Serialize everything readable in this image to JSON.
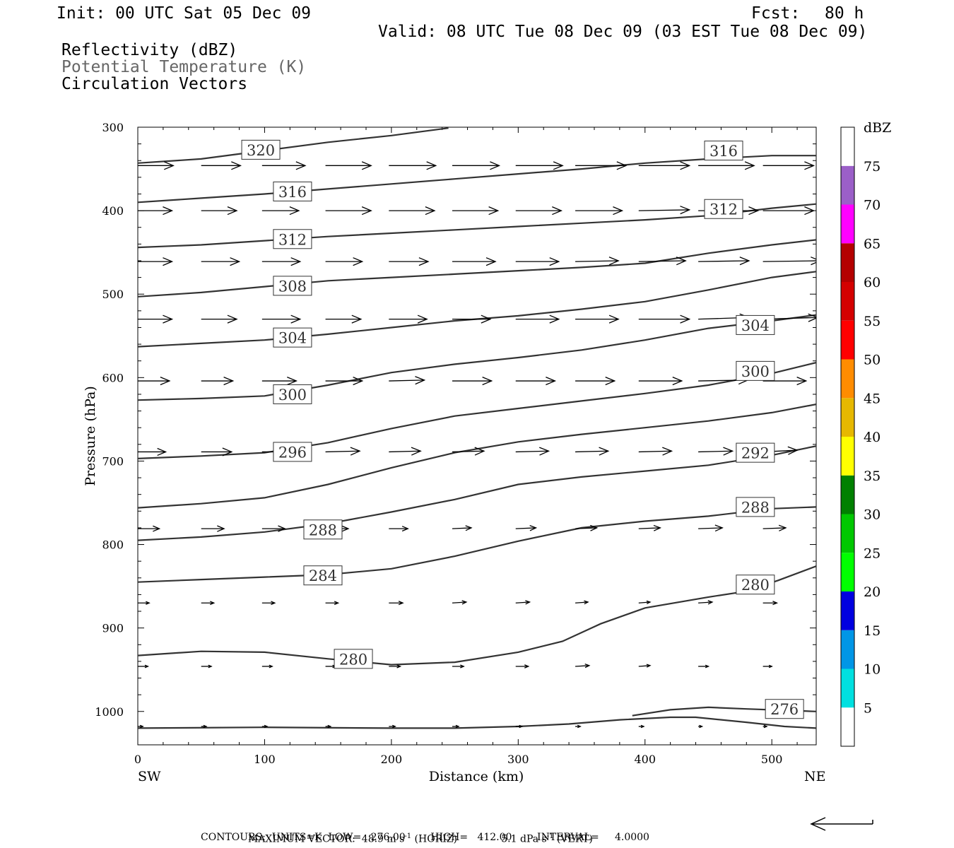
{
  "header": {
    "init": "Init: 00 UTC Sat 05 Dec 09",
    "fcst_label": "Fcst:",
    "fcst_value": "80 h",
    "valid": "Valid: 08 UTC Tue 08 Dec 09 (03 EST Tue 08 Dec 09)",
    "field1": "Reflectivity (dBZ)",
    "field2": "Potential Temperature (K)",
    "field3": "Circulation Vectors"
  },
  "footer": {
    "max_vector_label": "MAXIMUM VECTOR:",
    "max_horiz": "48.9 m s",
    "max_horiz_suffix": " (HORIZ)",
    "max_vert": "5.1 dPa s",
    "max_vert_suffix": " (VERT)",
    "sup": "-1",
    "contours": "CONTOURS:  UNITS=K  LOW=   276.00        HIGH=   412.00        INTERVAL=     4.0000"
  },
  "colorbar": {
    "title": "dBZ",
    "levels": [
      "5",
      "10",
      "15",
      "20",
      "25",
      "30",
      "35",
      "40",
      "45",
      "50",
      "55",
      "60",
      "65",
      "70",
      "75"
    ],
    "colors": [
      "#ffffff",
      "#00e0e0",
      "#0096e6",
      "#0000e0",
      "#00ff00",
      "#00c800",
      "#008000",
      "#ffff00",
      "#e6b800",
      "#ff8c00",
      "#ff0000",
      "#d40000",
      "#b40000",
      "#ff00ff",
      "#9b5fc8",
      "#ffffff"
    ]
  },
  "chart_data": {
    "type": "contour",
    "xlabel": "Distance (km)",
    "ylabel": "Pressure (hPa)",
    "xlim": [
      0,
      535
    ],
    "ylim": [
      300,
      1040
    ],
    "y_reversed": true,
    "x_ticks": [
      0,
      100,
      200,
      300,
      400,
      500
    ],
    "y_ticks": [
      300,
      400,
      500,
      600,
      700,
      800,
      900,
      1000
    ],
    "left_label": "SW",
    "right_label": "NE",
    "contour_color": "#333333",
    "contours": [
      {
        "label": "320",
        "points": [
          [
            0,
            343
          ],
          [
            50,
            338
          ],
          [
            100,
            328
          ],
          [
            150,
            318
          ],
          [
            200,
            310
          ],
          [
            245,
            301
          ]
        ],
        "labels_at": [
          [
            97,
            327
          ]
        ]
      },
      {
        "label": "316",
        "points": [
          [
            0,
            390
          ],
          [
            50,
            385
          ],
          [
            100,
            380
          ],
          [
            150,
            374
          ],
          [
            200,
            368
          ],
          [
            250,
            362
          ],
          [
            300,
            356
          ],
          [
            350,
            350
          ],
          [
            400,
            343
          ],
          [
            450,
            338
          ],
          [
            500,
            334
          ],
          [
            535,
            334
          ]
        ],
        "labels_at": [
          [
            122,
            377
          ],
          [
            462,
            328
          ]
        ]
      },
      {
        "label": "312",
        "points": [
          [
            0,
            444
          ],
          [
            50,
            441
          ],
          [
            100,
            436
          ],
          [
            150,
            431
          ],
          [
            200,
            427
          ],
          [
            250,
            423
          ],
          [
            300,
            419
          ],
          [
            350,
            415
          ],
          [
            400,
            411
          ],
          [
            450,
            406
          ],
          [
            500,
            397
          ],
          [
            535,
            392
          ]
        ],
        "labels_at": [
          [
            122,
            434
          ],
          [
            462,
            398
          ]
        ]
      },
      {
        "label": "308",
        "points": [
          [
            0,
            503
          ],
          [
            50,
            498
          ],
          [
            100,
            491
          ],
          [
            150,
            484
          ],
          [
            200,
            480
          ],
          [
            250,
            476
          ],
          [
            300,
            472
          ],
          [
            350,
            468
          ],
          [
            400,
            463
          ],
          [
            450,
            451
          ],
          [
            500,
            441
          ],
          [
            535,
            435
          ]
        ],
        "labels_at": [
          [
            122,
            490
          ]
        ]
      },
      {
        "label": "304",
        "points": [
          [
            0,
            563
          ],
          [
            50,
            559
          ],
          [
            100,
            555
          ],
          [
            150,
            548
          ],
          [
            200,
            540
          ],
          [
            250,
            532
          ],
          [
            300,
            526
          ],
          [
            350,
            518
          ],
          [
            400,
            509
          ],
          [
            450,
            495
          ],
          [
            500,
            480
          ],
          [
            535,
            473
          ]
        ],
        "labels_at": [
          [
            122,
            552
          ],
          [
            487,
            537
          ]
        ]
      },
      {
        "label": "300",
        "points": [
          [
            0,
            627
          ],
          [
            50,
            625
          ],
          [
            100,
            622
          ],
          [
            150,
            609
          ],
          [
            200,
            594
          ],
          [
            250,
            584
          ],
          [
            300,
            576
          ],
          [
            350,
            567
          ],
          [
            400,
            555
          ],
          [
            450,
            541
          ],
          [
            500,
            532
          ],
          [
            535,
            525
          ]
        ],
        "labels_at": [
          [
            122,
            620
          ],
          [
            487,
            592
          ]
        ]
      },
      {
        "label": "296",
        "points": [
          [
            0,
            697
          ],
          [
            50,
            694
          ],
          [
            100,
            690
          ],
          [
            150,
            678
          ],
          [
            200,
            661
          ],
          [
            250,
            646
          ],
          [
            300,
            637
          ],
          [
            350,
            628
          ],
          [
            400,
            619
          ],
          [
            450,
            609
          ],
          [
            500,
            595
          ],
          [
            535,
            582
          ]
        ],
        "labels_at": [
          [
            122,
            689
          ]
        ]
      },
      {
        "label": "292",
        "points": [
          [
            0,
            756
          ],
          [
            50,
            751
          ],
          [
            100,
            744
          ],
          [
            150,
            728
          ],
          [
            200,
            708
          ],
          [
            250,
            690
          ],
          [
            300,
            677
          ],
          [
            350,
            668
          ],
          [
            400,
            660
          ],
          [
            450,
            652
          ],
          [
            500,
            642
          ],
          [
            535,
            632
          ]
        ],
        "labels_at": [
          [
            487,
            690
          ]
        ]
      },
      {
        "label": "288",
        "points": [
          [
            0,
            795
          ],
          [
            50,
            791
          ],
          [
            100,
            785
          ],
          [
            150,
            775
          ],
          [
            200,
            761
          ],
          [
            250,
            746
          ],
          [
            300,
            728
          ],
          [
            350,
            719
          ],
          [
            400,
            712
          ],
          [
            450,
            705
          ],
          [
            500,
            693
          ],
          [
            535,
            682
          ]
        ],
        "labels_at": [
          [
            146,
            782
          ],
          [
            487,
            755
          ]
        ]
      },
      {
        "label": "284",
        "points": [
          [
            0,
            845
          ],
          [
            50,
            842
          ],
          [
            100,
            839
          ],
          [
            150,
            836
          ],
          [
            200,
            829
          ],
          [
            250,
            814
          ],
          [
            300,
            796
          ],
          [
            350,
            780
          ],
          [
            400,
            772
          ],
          [
            450,
            766
          ],
          [
            500,
            757
          ],
          [
            535,
            755
          ]
        ],
        "labels_at": [
          [
            146,
            837
          ]
        ]
      },
      {
        "label": "280",
        "points": [
          [
            0,
            933
          ],
          [
            50,
            928
          ],
          [
            100,
            929
          ],
          [
            150,
            937
          ],
          [
            200,
            944
          ],
          [
            250,
            941
          ],
          [
            300,
            929
          ],
          [
            335,
            916
          ],
          [
            365,
            895
          ],
          [
            400,
            876
          ],
          [
            450,
            863
          ],
          [
            480,
            856
          ],
          [
            505,
            843
          ],
          [
            535,
            826
          ]
        ],
        "labels_at": [
          [
            170,
            937
          ],
          [
            487,
            848
          ]
        ]
      },
      {
        "label": "276",
        "points": [
          [
            390,
            1005
          ],
          [
            420,
            998
          ],
          [
            450,
            995
          ],
          [
            480,
            997
          ],
          [
            535,
            1000
          ]
        ],
        "labels_at": [
          [
            510,
            997
          ]
        ]
      },
      {
        "label": "",
        "points": [
          [
            0,
            1020
          ],
          [
            100,
            1019
          ],
          [
            200,
            1020
          ],
          [
            250,
            1020
          ],
          [
            300,
            1018
          ],
          [
            340,
            1015
          ],
          [
            380,
            1010
          ],
          [
            420,
            1007
          ],
          [
            440,
            1007
          ],
          [
            480,
            1013
          ],
          [
            510,
            1018
          ],
          [
            535,
            1020
          ]
        ],
        "labels_at": []
      }
    ],
    "vector_rows": [
      {
        "p": 346,
        "x": [
          0,
          50,
          98,
          148,
          198,
          248,
          298,
          345,
          395,
          442,
          493
        ],
        "dx": [
          28,
          31,
          34,
          36,
          37,
          37,
          37,
          40,
          40,
          44,
          40
        ],
        "dy": [
          0,
          0,
          0,
          0,
          0,
          0,
          0,
          0,
          0,
          0,
          0
        ]
      },
      {
        "p": 400,
        "x": [
          0,
          50,
          98,
          148,
          198,
          248,
          298,
          345,
          395,
          442,
          493
        ],
        "dx": [
          27,
          28,
          29,
          36,
          36,
          36,
          36,
          37,
          40,
          47,
          40
        ],
        "dy": [
          0,
          0,
          0,
          0,
          0,
          0,
          0,
          0,
          -1,
          0,
          0
        ]
      },
      {
        "p": 461,
        "x": [
          0,
          50,
          98,
          148,
          198,
          248,
          298,
          345,
          395,
          442,
          493
        ],
        "dx": [
          27,
          30,
          30,
          29,
          31,
          34,
          34,
          34,
          37,
          40,
          45
        ],
        "dy": [
          0,
          0,
          0,
          0,
          0,
          0,
          0,
          -1,
          -1,
          -1,
          -1
        ]
      },
      {
        "p": 530,
        "x": [
          0,
          50,
          98,
          148,
          198,
          248,
          298,
          345,
          395,
          442,
          493
        ],
        "dx": [
          27,
          28,
          30,
          28,
          30,
          30,
          34,
          34,
          40,
          40,
          43
        ],
        "dy": [
          0,
          0,
          0,
          0,
          0,
          0,
          0,
          0,
          0,
          -2,
          -2
        ]
      },
      {
        "p": 604,
        "x": [
          0,
          50,
          98,
          148,
          198,
          248,
          298,
          345,
          395,
          442,
          493
        ],
        "dx": [
          25,
          25,
          27,
          29,
          28,
          31,
          31,
          31,
          34,
          39,
          34
        ],
        "dy": [
          0,
          0,
          0,
          0,
          -1,
          0,
          0,
          0,
          0,
          -1,
          0
        ]
      },
      {
        "p": 689,
        "x": [
          0,
          50,
          98,
          148,
          198,
          248,
          298,
          345,
          395,
          442,
          493
        ],
        "dx": [
          22,
          24,
          26,
          27,
          25,
          25,
          26,
          26,
          26,
          27,
          27
        ],
        "dy": [
          0,
          0,
          0,
          -1,
          -1,
          -1,
          -1,
          -1,
          -1,
          -1,
          -2
        ]
      },
      {
        "p": 781,
        "x": [
          0,
          50,
          98,
          148,
          198,
          248,
          298,
          345,
          395,
          442,
          493
        ],
        "dx": [
          17,
          18,
          18,
          18,
          15,
          15,
          16,
          17,
          17,
          19,
          18
        ],
        "dy": [
          0,
          0,
          0,
          0,
          0,
          -1,
          -1,
          -1,
          -1,
          -1,
          -1
        ]
      },
      {
        "p": 870,
        "x": [
          0,
          50,
          98,
          148,
          198,
          248,
          298,
          345,
          395,
          442,
          493
        ],
        "dx": [
          9,
          10,
          10,
          10,
          11,
          11,
          11,
          10,
          9,
          11,
          11
        ],
        "dy": [
          0,
          0,
          0,
          0,
          0,
          -1,
          -1,
          -1,
          -1,
          -1,
          0
        ]
      },
      {
        "p": 946,
        "x": [
          0,
          50,
          98,
          148,
          198,
          248,
          298,
          345,
          395,
          442,
          493
        ],
        "dx": [
          8,
          8,
          8,
          8,
          9,
          9,
          10,
          11,
          9,
          8,
          7
        ],
        "dy": [
          0,
          0,
          0,
          0,
          0,
          0,
          0,
          -1,
          -1,
          0,
          0
        ]
      },
      {
        "p": 1018,
        "x": [
          0,
          50,
          98,
          148,
          198,
          248,
          298,
          345,
          395,
          442,
          493
        ],
        "dx": [
          4,
          4,
          4,
          4,
          5,
          5,
          5,
          4,
          4,
          3,
          3
        ],
        "dy": [
          0,
          0,
          0,
          0,
          0,
          0,
          0,
          0,
          0,
          0,
          0
        ]
      }
    ]
  }
}
